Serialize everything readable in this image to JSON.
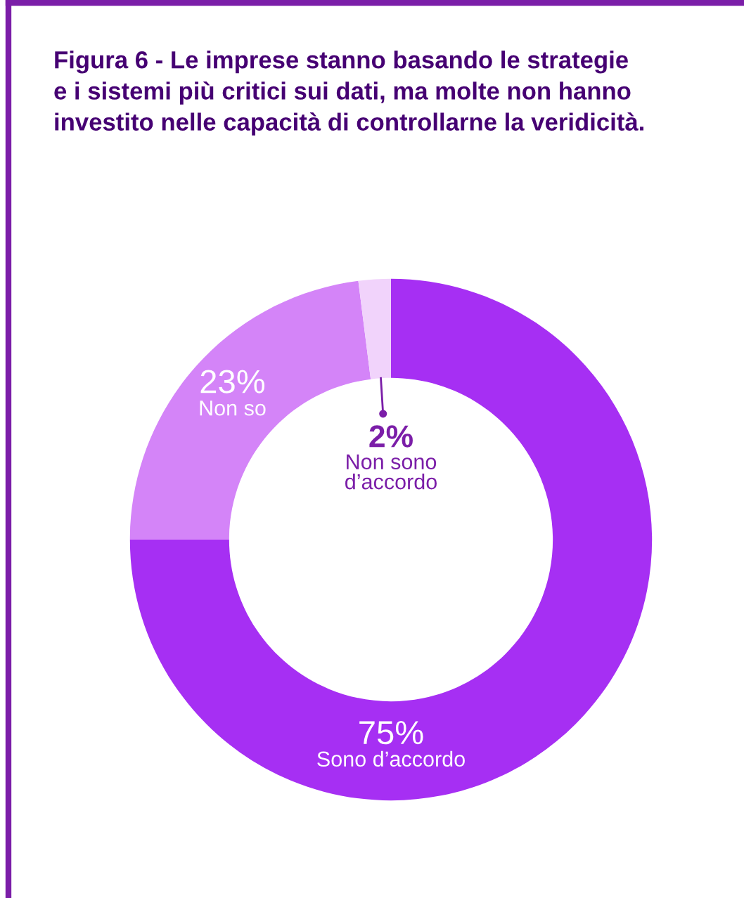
{
  "chart_data": {
    "type": "donut",
    "title": "Figura 6 - Le imprese stanno basando le strategie\ne i sistemi più critici sui dati, ma molte non hanno\ninvestito nelle capacità di controllarne la veridicità.",
    "categories": [
      "Sono d’accordo",
      "Non so",
      "Non sono\nd’accordo"
    ],
    "values": [
      75,
      23,
      2
    ],
    "colors": [
      "#a62ff3",
      "#d484f8",
      "#f1d3fb"
    ],
    "value_labels": [
      "75%",
      "23%",
      "2%"
    ]
  }
}
